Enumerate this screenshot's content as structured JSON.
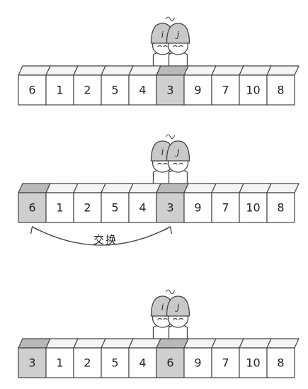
{
  "rows": [
    {
      "values": [
        "6",
        "1",
        "2",
        "5",
        "4",
        "3",
        "9",
        "7",
        "10",
        "8"
      ],
      "highlighted": [
        5
      ],
      "pointer_index": 5,
      "pointers": [
        "i",
        "j"
      ],
      "arrow": null
    },
    {
      "values": [
        "6",
        "1",
        "2",
        "5",
        "4",
        "3",
        "9",
        "7",
        "10",
        "8"
      ],
      "highlighted": [
        0,
        5
      ],
      "pointer_index": 5,
      "pointers": [
        "i",
        "j"
      ],
      "arrow": {
        "from": 0,
        "to": 5,
        "label": "交换"
      }
    },
    {
      "values": [
        "3",
        "1",
        "2",
        "5",
        "4",
        "6",
        "9",
        "7",
        "10",
        "8"
      ],
      "highlighted": [
        0,
        5
      ],
      "pointer_index": 5,
      "pointers": [
        "i",
        "j"
      ],
      "arrow": null
    }
  ],
  "colors": {
    "cell_fill": "#ffffff",
    "cell_highlight": "#cfcfcf",
    "cell_top": "#f4f4f4",
    "cell_top_highlight": "#b9b9b9",
    "stroke": "#444444",
    "helmet": "#c9c9c9",
    "skin": "#ffffff"
  }
}
